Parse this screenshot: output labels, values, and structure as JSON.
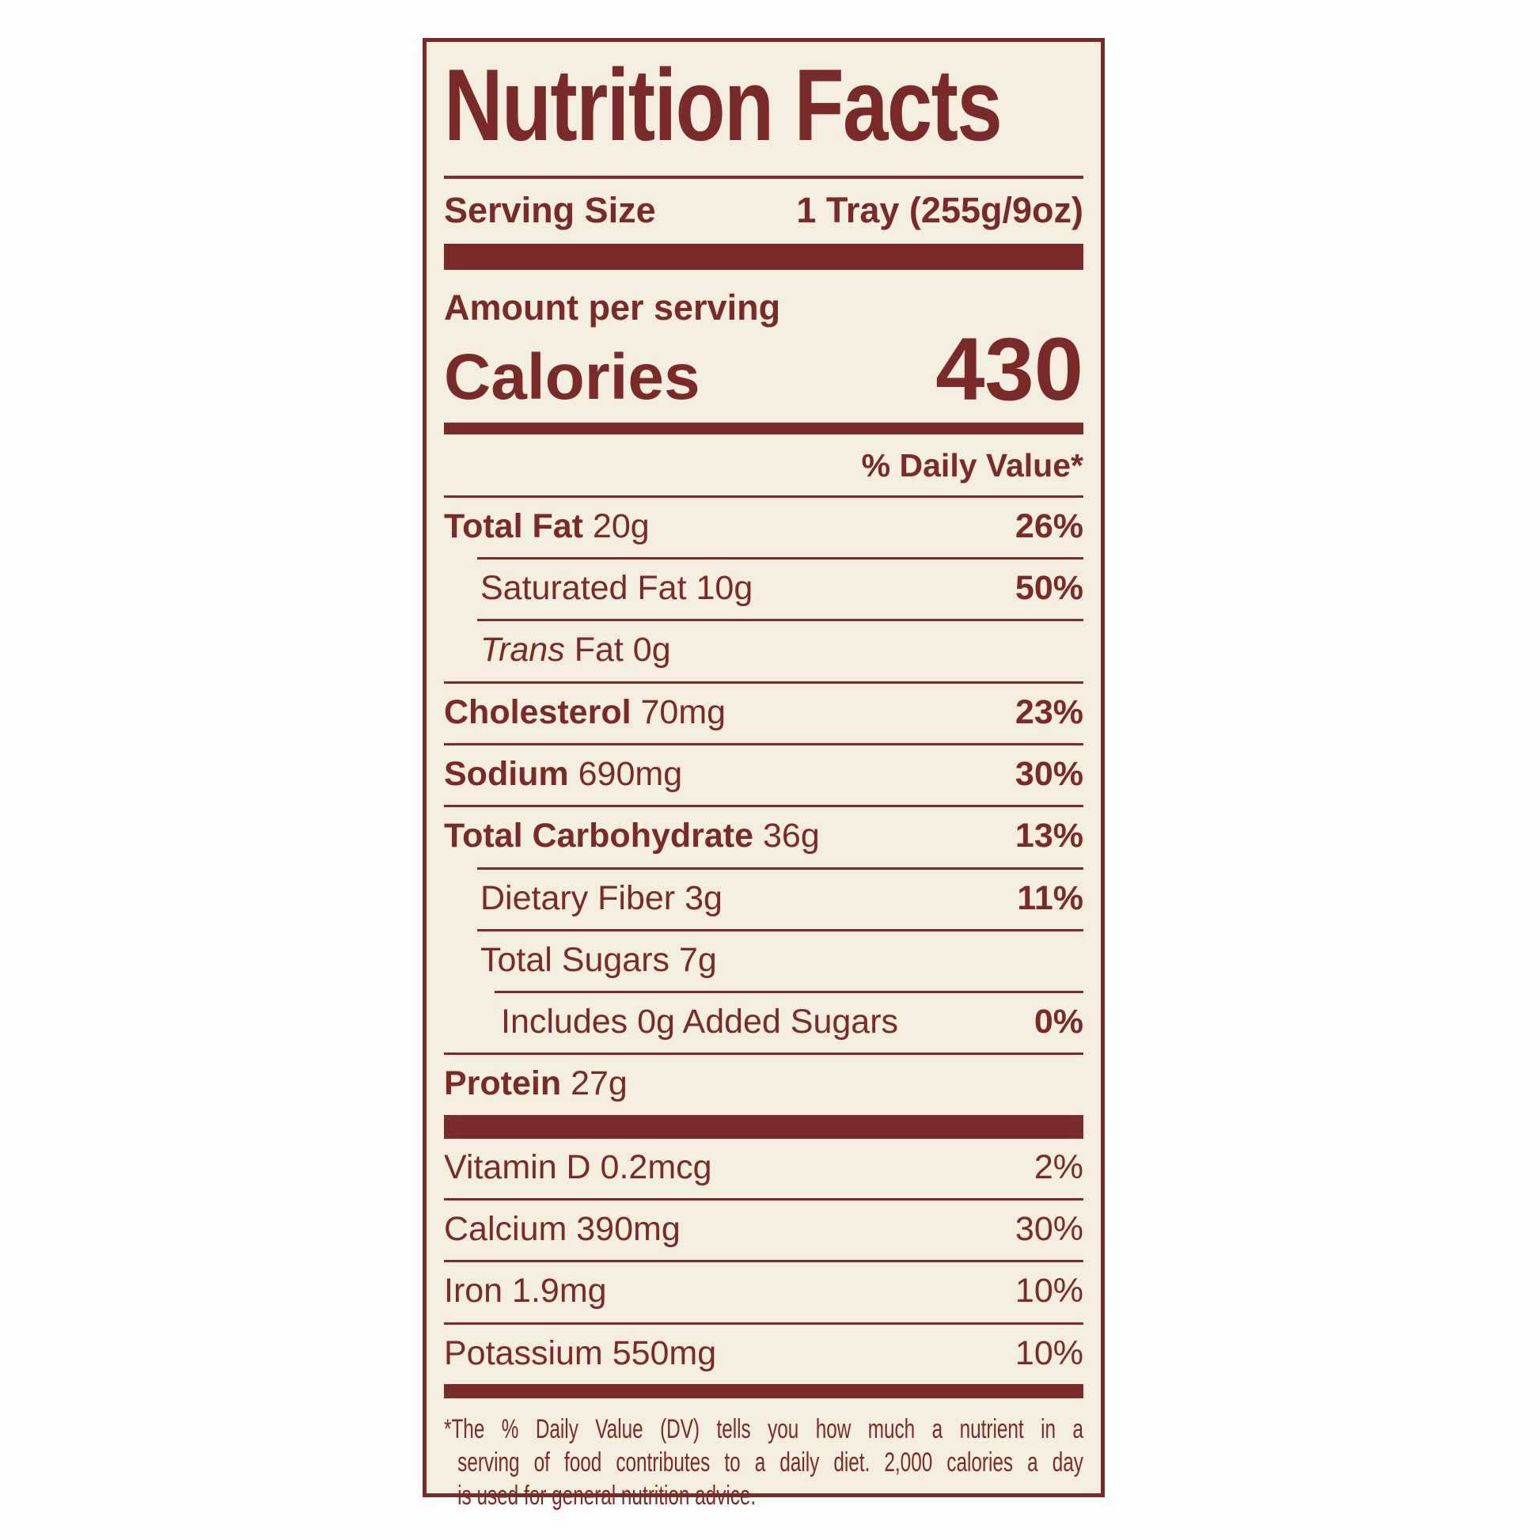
{
  "colors": {
    "maroon": "#7a2a28",
    "cream": "#f3eedd",
    "page_bg": "#fdfdfd"
  },
  "label": {
    "title": "Nutrition Facts",
    "serving_size_label": "Serving Size",
    "serving_size_value": "1 Tray (255g/9oz)",
    "amount_per_serving": "Amount per serving",
    "calories_label": "Calories",
    "calories_value": "430",
    "daily_value_header": "% Daily Value*"
  },
  "rows": [
    {
      "name": "Total Fat",
      "amount": "20g",
      "dv": "26%",
      "name_bold": true,
      "indent": 0,
      "rule": "none"
    },
    {
      "name": "Saturated Fat",
      "amount": "10g",
      "dv": "50%",
      "name_bold": false,
      "indent": 1,
      "rule": "indent1"
    },
    {
      "name_italic": "Trans",
      "name": "Fat",
      "amount": "0g",
      "dv": "",
      "name_bold": false,
      "indent": 1,
      "rule": "indent1"
    },
    {
      "name": "Cholesterol",
      "amount": "70mg",
      "dv": "23%",
      "name_bold": true,
      "indent": 0,
      "rule": "full"
    },
    {
      "name": "Sodium",
      "amount": "690mg",
      "dv": "30%",
      "name_bold": true,
      "indent": 0,
      "rule": "full"
    },
    {
      "name": "Total Carbohydrate",
      "amount": "36g",
      "dv": "13%",
      "name_bold": true,
      "indent": 0,
      "rule": "full"
    },
    {
      "name": "Dietary Fiber",
      "amount": "3g",
      "dv": "11%",
      "name_bold": false,
      "indent": 1,
      "rule": "indent1"
    },
    {
      "name": "Total Sugars",
      "amount": "7g",
      "dv": "",
      "name_bold": false,
      "indent": 1,
      "rule": "indent1"
    },
    {
      "name": "Includes 0g Added Sugars",
      "amount": "",
      "dv": "0%",
      "name_bold": false,
      "indent": 2,
      "rule": "indent2"
    },
    {
      "name": "Protein",
      "amount": "27g",
      "dv": "",
      "name_bold": true,
      "indent": 0,
      "rule": "full"
    }
  ],
  "vitamins": [
    {
      "name": "Vitamin D 0.2mcg",
      "dv": "2%",
      "rule": "none"
    },
    {
      "name": "Calcium 390mg",
      "dv": "30%",
      "rule": "full"
    },
    {
      "name": "Iron 1.9mg",
      "dv": "10%",
      "rule": "full"
    },
    {
      "name": "Potassium 550mg",
      "dv": "10%",
      "rule": "full"
    }
  ],
  "footnote_lines": [
    "*The % Daily Value (DV) tells you how much a nutrient in a",
    "serving of food contributes to a daily diet. 2,000 calories a day",
    "is used for general nutrition advice."
  ]
}
